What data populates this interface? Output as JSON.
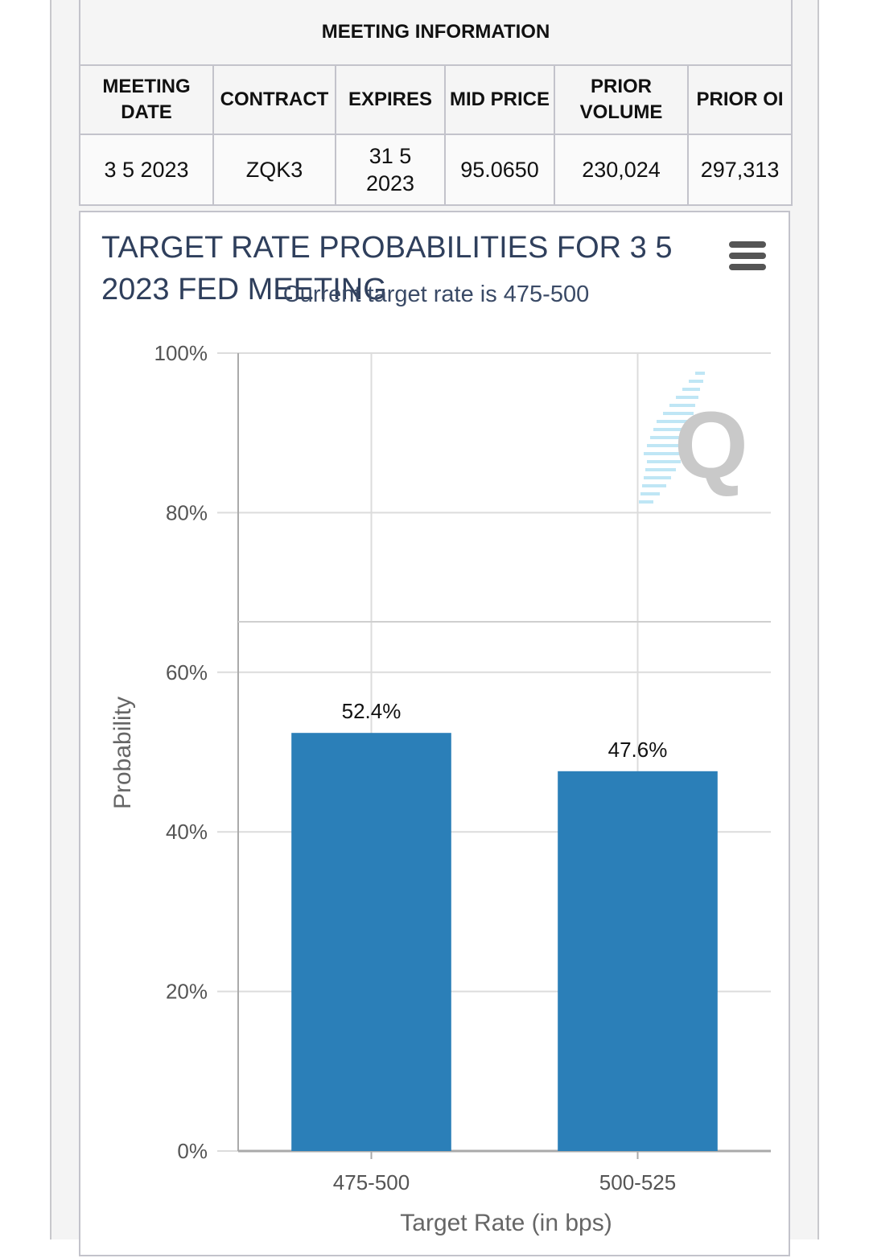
{
  "meeting_info": {
    "title": "MEETING INFORMATION",
    "headers": [
      "MEETING DATE",
      "CONTRACT",
      "EXPIRES",
      "MID PRICE",
      "PRIOR VOLUME",
      "PRIOR OI"
    ],
    "row": [
      "3 5 2023",
      "ZQK3",
      "31 5 2023",
      "95.0650",
      "230,024",
      "297,313"
    ]
  },
  "chart": {
    "menu_icon": "hamburger-menu-icon",
    "watermark_icon": "q-logo-icon"
  },
  "chart_data": {
    "type": "bar",
    "title": "TARGET RATE PROBABILITIES FOR 3 5 2023 FED MEETING",
    "subtitle": "Current target rate is 475-500",
    "categories": [
      "475-500",
      "500-525"
    ],
    "values": [
      52.4,
      47.6
    ],
    "data_labels": [
      "52.4%",
      "47.6%"
    ],
    "xlabel": "Target Rate (in bps)",
    "ylabel": "Probability",
    "ylim": [
      0,
      100
    ],
    "yticks": [
      "0%",
      "20%",
      "40%",
      "60%",
      "80%",
      "100%"
    ],
    "grid": true,
    "bar_color": "#2b7fb8"
  }
}
